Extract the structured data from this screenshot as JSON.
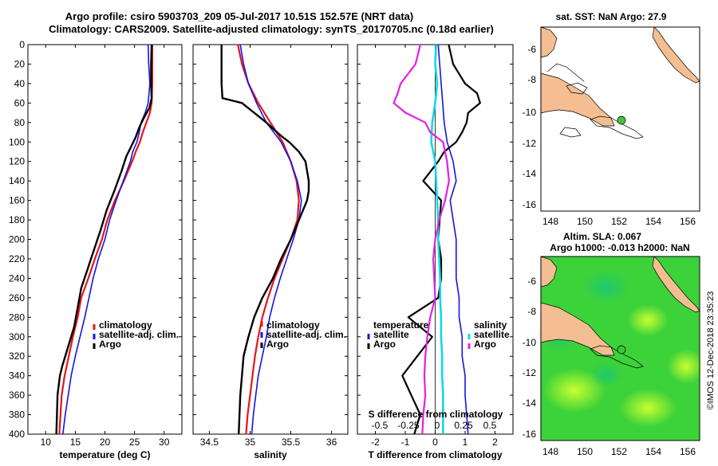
{
  "header": {
    "line1": "Argo profile: csiro 5903703_209 05-Jul-2017 10.51S 152.57E (NRT data)",
    "line2": "Climatology: CARS2009. Satellite-adjusted climatology: synTS_20170705.nc (0.18d earlier)"
  },
  "depth_axis": {
    "ticks": [
      0,
      20,
      40,
      60,
      80,
      100,
      120,
      140,
      160,
      180,
      200,
      220,
      240,
      260,
      280,
      300,
      320,
      340,
      360,
      380,
      400
    ]
  },
  "colors": {
    "climatology": "#e8141a",
    "satellite": "#1414e6",
    "argo": "#000000",
    "argo_salinity_diff": "#e61ee6",
    "sat_salinity_diff": "#14d7e6",
    "land": "#f5be91",
    "marker": "#3cc83c"
  },
  "chart_data": [
    {
      "type": "line",
      "name": "temperature",
      "xlabel": "temperature (deg C)",
      "xlim": [
        7,
        33
      ],
      "xticks": [
        10,
        15,
        20,
        25,
        30
      ],
      "ylim": [
        0,
        400
      ],
      "legend": [
        "climatology",
        "satellite-adj. clim.",
        "Argo"
      ],
      "series": [
        {
          "name": "climatology",
          "depth": [
            0,
            20,
            40,
            60,
            70,
            80,
            90,
            100,
            110,
            120,
            140,
            160,
            180,
            200,
            220,
            240,
            260,
            280,
            300,
            320,
            340,
            360,
            380,
            400
          ],
          "values": [
            28.0,
            28.0,
            28.0,
            27.9,
            27.6,
            27.0,
            26.4,
            25.9,
            25.2,
            24.6,
            23.2,
            21.7,
            20.4,
            19.5,
            18.3,
            17.2,
            16.0,
            15.4,
            14.6,
            13.9,
            13.2,
            12.7,
            12.5,
            12.3
          ]
        },
        {
          "name": "satellite-adj. clim.",
          "depth": [
            0,
            20,
            40,
            60,
            70,
            80,
            90,
            100,
            110,
            120,
            140,
            160,
            180,
            200,
            220,
            240,
            260,
            280,
            300,
            320,
            340,
            360,
            380,
            400
          ],
          "values": [
            27.3,
            27.4,
            27.6,
            27.3,
            26.8,
            26.1,
            25.8,
            25.4,
            24.7,
            24.3,
            23.1,
            21.9,
            20.8,
            20.0,
            18.9,
            18.0,
            17.3,
            16.6,
            15.8,
            15.0,
            14.3,
            13.8,
            13.3,
            12.9
          ]
        },
        {
          "name": "Argo",
          "depth": [
            0,
            20,
            40,
            55,
            65,
            75,
            85,
            95,
            105,
            115,
            130,
            150,
            170,
            190,
            210,
            230,
            250,
            270,
            290,
            310,
            330,
            340,
            360,
            380,
            400
          ],
          "values": [
            27.9,
            27.8,
            27.8,
            27.9,
            27.5,
            26.6,
            25.8,
            25.2,
            24.4,
            23.6,
            22.8,
            21.6,
            20.3,
            19.3,
            18.2,
            17.1,
            16.0,
            15.4,
            14.8,
            13.8,
            12.8,
            12.4,
            12.0,
            11.9,
            11.8
          ]
        }
      ]
    },
    {
      "type": "line",
      "name": "salinity",
      "xlabel": "salinity",
      "xlim": [
        34.3,
        36.2
      ],
      "xticks": [
        34.5,
        35,
        35.5,
        36
      ],
      "ylim": [
        0,
        400
      ],
      "legend": [
        "climatology",
        "satellite-adj. clim.",
        "Argo"
      ],
      "series": [
        {
          "name": "climatology",
          "depth": [
            0,
            20,
            40,
            60,
            80,
            100,
            120,
            140,
            160,
            180,
            200,
            220,
            240,
            260,
            280,
            300,
            320,
            340,
            360,
            380,
            400
          ],
          "values": [
            34.85,
            34.9,
            34.98,
            35.1,
            35.25,
            35.4,
            35.5,
            35.57,
            35.6,
            35.58,
            35.5,
            35.4,
            35.3,
            35.22,
            35.15,
            35.1,
            35.06,
            35.03,
            35.0,
            34.97,
            34.95
          ]
        },
        {
          "name": "satellite-adj. clim.",
          "depth": [
            0,
            20,
            40,
            60,
            80,
            100,
            120,
            140,
            160,
            180,
            200,
            220,
            240,
            260,
            280,
            300,
            320,
            340,
            360,
            380,
            400
          ],
          "values": [
            34.88,
            34.92,
            34.98,
            35.08,
            35.2,
            35.38,
            35.5,
            35.58,
            35.63,
            35.6,
            35.53,
            35.45,
            35.37,
            35.3,
            35.24,
            35.2,
            35.15,
            35.1,
            35.07,
            35.04,
            35.02
          ]
        },
        {
          "name": "Argo",
          "depth": [
            0,
            20,
            40,
            55,
            60,
            70,
            80,
            90,
            95,
            100,
            110,
            120,
            140,
            150,
            160,
            180,
            200,
            220,
            240,
            260,
            280,
            300,
            320,
            340,
            360,
            380,
            400
          ],
          "values": [
            34.65,
            34.65,
            34.65,
            34.66,
            34.9,
            35.05,
            35.2,
            35.33,
            35.4,
            35.48,
            35.6,
            35.68,
            35.72,
            35.72,
            35.7,
            35.6,
            35.5,
            35.38,
            35.28,
            35.15,
            35.05,
            34.98,
            34.92,
            34.9,
            34.88,
            34.87,
            34.86
          ]
        }
      ]
    },
    {
      "type": "line",
      "name": "difference from climatology",
      "xlabel": "T difference from climatology",
      "xlim": [
        -2.6,
        2.6
      ],
      "xticks": [
        -2,
        -1,
        0,
        1,
        2
      ],
      "top_xlabel": "S difference from climatology",
      "top_xticks": [
        "-0.5",
        "-0.25",
        "0",
        "0.25",
        "0.5"
      ],
      "ylim": [
        0,
        400
      ],
      "legend": [
        "temperature",
        "satellite",
        "Argo",
        "salinity",
        "satellite",
        "Argo"
      ],
      "series": [
        {
          "name": "temperature satellite",
          "depth": [
            0,
            40,
            80,
            100,
            120,
            140,
            160,
            180,
            200,
            220,
            240,
            260,
            280,
            300,
            320,
            340,
            360,
            380,
            400
          ],
          "values": [
            0.1,
            0.2,
            0.3,
            0.4,
            0.6,
            0.7,
            0.5,
            0.6,
            0.7,
            0.7,
            0.7,
            0.8,
            0.8,
            0.9,
            0.9,
            1.0,
            1.0,
            1.05,
            1.1
          ]
        },
        {
          "name": "temperature Argo",
          "depth": [
            0,
            20,
            40,
            50,
            60,
            70,
            80,
            90,
            100,
            110,
            120,
            140,
            160,
            180,
            200,
            220,
            240,
            260,
            280,
            300,
            320,
            340,
            360,
            380,
            400
          ],
          "values": [
            0.45,
            0.6,
            1.0,
            1.4,
            1.5,
            1.1,
            1.05,
            0.9,
            0.7,
            0.3,
            0.1,
            -0.4,
            0.2,
            0.15,
            0.1,
            0.2,
            0.2,
            0.1,
            -0.9,
            -0.1,
            -0.6,
            -1.1,
            -0.8,
            -0.5,
            -0.7
          ]
        },
        {
          "name": "salinity satellite",
          "depth": [
            0,
            20,
            40,
            60,
            80,
            100,
            120,
            140,
            160,
            180,
            200,
            220,
            240,
            260,
            280,
            300,
            320,
            340,
            360,
            380,
            400
          ],
          "values": [
            0.01,
            0.0,
            0.02,
            0.0,
            -0.03,
            -0.04,
            0.0,
            0.01,
            0.02,
            0.03,
            0.03,
            0.04,
            0.05,
            0.05,
            0.06,
            0.06,
            0.07,
            0.07,
            0.08,
            0.08,
            0.08
          ]
        },
        {
          "name": "salinity Argo",
          "depth": [
            0,
            20,
            40,
            50,
            60,
            70,
            80,
            90,
            100,
            110,
            120,
            140,
            160,
            180,
            200,
            220,
            240,
            260,
            280,
            300,
            320,
            340,
            360,
            380,
            400
          ],
          "values": [
            -0.15,
            -0.2,
            -0.35,
            -0.38,
            -0.42,
            -0.3,
            -0.1,
            -0.05,
            0.08,
            0.1,
            0.12,
            0.14,
            0.1,
            0.04,
            0.0,
            -0.02,
            -0.01,
            0.0,
            -0.05,
            -0.08,
            -0.1,
            -0.11,
            -0.1,
            -0.12,
            -0.13
          ]
        }
      ]
    }
  ],
  "maps": {
    "sst": {
      "title": "sat. SST: NaN Argo: 27.9",
      "lat_ticks": [
        "-6",
        "-8",
        "-10",
        "-12",
        "-14",
        "-16"
      ],
      "lon_ticks": [
        "148",
        "150",
        "152",
        "154",
        "156"
      ],
      "argo_position": {
        "lon": 152.57,
        "lat": -10.51
      }
    },
    "sla": {
      "title_line1": "Altim. SLA: 0.067",
      "title_line2": "Argo h1000: -0.013 h2000: NaN",
      "lat_ticks": [
        "-6",
        "-8",
        "-10",
        "-12",
        "-14",
        "-16"
      ],
      "lon_ticks": [
        "148",
        "150",
        "152",
        "154",
        "156"
      ],
      "argo_position": {
        "lon": 152.57,
        "lat": -10.51
      }
    }
  },
  "footer": {
    "credit": "©IMOS 12-Dec-2018 23:35:23"
  }
}
